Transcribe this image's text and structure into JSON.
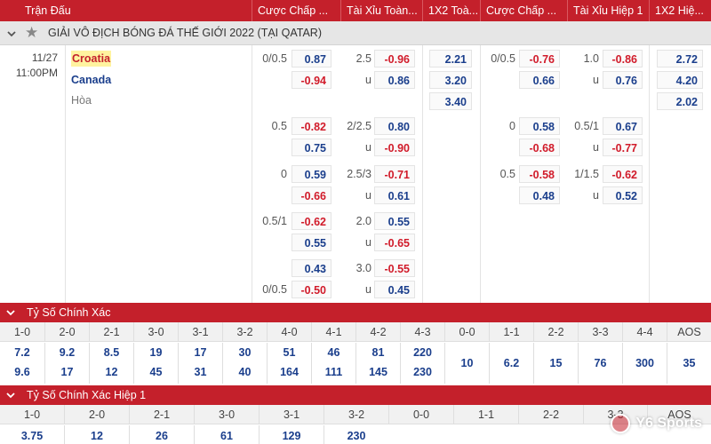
{
  "header": {
    "cols": [
      "Trận Đấu",
      "Cược Chấp ...",
      "Tài Xỉu Toàn...",
      "1X2 Toà...",
      "Cược Chấp ...",
      "Tài Xỉu Hiệp 1",
      "1X2 Hiệ..."
    ]
  },
  "league": {
    "name": "GIẢI VÔ ĐỊCH BÓNG ĐÁ THẾ GIỚI 2022 (TẠI QATAR)"
  },
  "match": {
    "date": "11/27",
    "time": "11:00PM",
    "home": "Croatia",
    "away": "Canada",
    "draw": "Hòa"
  },
  "ft_handicap": [
    {
      "line_home": "0/0.5",
      "home": "0.87",
      "line_away": "",
      "away": "-0.94"
    },
    {
      "line_home": "0.5",
      "home": "-0.82",
      "line_away": "",
      "away": "0.75"
    },
    {
      "line_home": "0",
      "home": "0.59",
      "line_away": "",
      "away": "-0.66"
    },
    {
      "line_home": "0.5/1",
      "home": "-0.62",
      "line_away": "",
      "away": "0.55"
    },
    {
      "line_home": "",
      "home": "0.43",
      "line_away": "0/0.5",
      "away": "-0.50"
    }
  ],
  "ft_ou": [
    {
      "line": "2.5",
      "over": "-0.96",
      "u": "u",
      "under": "0.86"
    },
    {
      "line": "2/2.5",
      "over": "0.80",
      "u": "u",
      "under": "-0.90"
    },
    {
      "line": "2.5/3",
      "over": "-0.71",
      "u": "u",
      "under": "0.61"
    },
    {
      "line": "2.0",
      "over": "0.55",
      "u": "u",
      "under": "-0.65"
    },
    {
      "line": "3.0",
      "over": "-0.55",
      "u": "u",
      "under": "0.45"
    }
  ],
  "ft_1x2": [
    "2.21",
    "3.20",
    "3.40"
  ],
  "h1_handicap": [
    {
      "line": "0/0.5",
      "home": "-0.76",
      "away": "0.66"
    },
    {
      "line": "0",
      "home": "0.58",
      "away": "-0.68"
    },
    {
      "line": "0.5",
      "home": "-0.58",
      "away": "0.48"
    }
  ],
  "h1_ou": [
    {
      "line": "1.0",
      "over": "-0.86",
      "u": "u",
      "under": "0.76"
    },
    {
      "line": "0.5/1",
      "over": "0.67",
      "u": "u",
      "under": "-0.77"
    },
    {
      "line": "1/1.5",
      "over": "-0.62",
      "u": "u",
      "under": "0.52"
    }
  ],
  "h1_1x2": [
    "2.72",
    "4.20",
    "2.02"
  ],
  "correct_score": {
    "title": "Tỷ Số Chính Xác",
    "scores": [
      "1-0",
      "2-0",
      "2-1",
      "3-0",
      "3-1",
      "3-2",
      "4-0",
      "4-1",
      "4-2",
      "4-3",
      "0-0",
      "1-1",
      "2-2",
      "3-3",
      "4-4",
      "AOS"
    ],
    "home": [
      "7.2",
      "9.2",
      "8.5",
      "19",
      "17",
      "30",
      "51",
      "46",
      "81",
      "220"
    ],
    "away": [
      "9.6",
      "17",
      "12",
      "45",
      "31",
      "40",
      "164",
      "111",
      "145",
      "230"
    ],
    "single": [
      "10",
      "6.2",
      "15",
      "76",
      "300",
      "35"
    ]
  },
  "correct_score_h1": {
    "title": "Tỷ Số Chính Xác Hiệp 1",
    "scores": [
      "1-0",
      "2-0",
      "2-1",
      "3-0",
      "3-1",
      "3-2",
      "0-0",
      "1-1",
      "2-2",
      "3-3",
      "AOS"
    ],
    "home": [
      "3.75",
      "12",
      "26",
      "61",
      "129",
      "230"
    ]
  },
  "watermark": "Y6 Sports",
  "colors": {
    "accent": "#c4202b",
    "positive": "#1a3e8c",
    "negative": "#d11b2a"
  }
}
